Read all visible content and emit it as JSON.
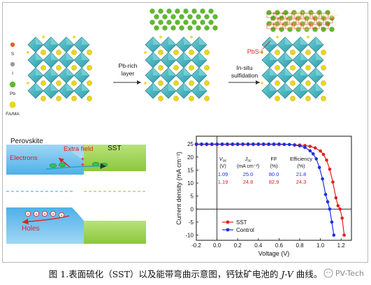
{
  "schematic": {
    "legend": [
      {
        "label": "S",
        "color": "#e0621e"
      },
      {
        "label": "I",
        "color": "#9a9a9a"
      },
      {
        "label": "Pb",
        "color": "#5dbb2a"
      },
      {
        "label": "FA/MA",
        "color": "#e8d81a"
      }
    ],
    "step1_label_line1": "Pb-rich",
    "step1_label_line2": "layer",
    "step2_label_line1": "In-situ",
    "step2_label_line2": "sulfidation",
    "pbs_label": "PbS-I"
  },
  "band_diagram": {
    "perovskite_label": "Perovskite",
    "sst_label": "SST",
    "extra_field_label": "Extra field",
    "electrons_label": "Electrons",
    "holes_label": "Holes"
  },
  "jv_table": {
    "headers": [
      {
        "line1": "V",
        "sub": "oc",
        "line2": "(V)"
      },
      {
        "line1": "J",
        "sub": "sc",
        "line2": "(mA cm⁻²)"
      },
      {
        "line1": "FF",
        "sub": "",
        "line2": "(%)"
      },
      {
        "line1": "Efficiency",
        "sub": "",
        "line2": "(%)"
      }
    ],
    "rows": [
      {
        "series": "Control",
        "color": "#1a2fe0",
        "values": [
          "1.09",
          "25.0",
          "80.0",
          "21.8"
        ]
      },
      {
        "series": "SST",
        "color": "#e0201a",
        "values": [
          "1.19",
          "24.8",
          "82.9",
          "24.3"
        ]
      }
    ]
  },
  "chart_data": {
    "type": "line",
    "xlabel": "Voltage (V)",
    "ylabel": "Current density (mA cm⁻²)",
    "xlim": [
      -0.2,
      1.3
    ],
    "ylim": [
      -12,
      28
    ],
    "xticks": [
      -0.2,
      0.0,
      0.2,
      0.4,
      0.6,
      0.8,
      1.0,
      1.2
    ],
    "yticks": [
      -10,
      -5,
      0,
      5,
      10,
      15,
      20,
      25
    ],
    "legend_position": "bottom-left",
    "series": [
      {
        "name": "SST",
        "color": "#e0201a",
        "marker": "circle",
        "x": [
          -0.2,
          -0.15,
          -0.1,
          -0.05,
          0.0,
          0.05,
          0.1,
          0.15,
          0.2,
          0.25,
          0.3,
          0.35,
          0.4,
          0.45,
          0.5,
          0.55,
          0.6,
          0.65,
          0.7,
          0.75,
          0.8,
          0.85,
          0.9,
          0.95,
          1.0,
          1.03,
          1.06,
          1.09,
          1.12,
          1.15,
          1.17,
          1.19,
          1.21,
          1.23
        ],
        "y": [
          24.8,
          24.8,
          24.8,
          24.8,
          24.8,
          24.8,
          24.8,
          24.8,
          24.8,
          24.8,
          24.8,
          24.8,
          24.8,
          24.8,
          24.8,
          24.8,
          24.8,
          24.8,
          24.8,
          24.7,
          24.6,
          24.4,
          24.1,
          23.5,
          22.3,
          21.0,
          18.8,
          15.3,
          10.4,
          4.3,
          1.3,
          0.0,
          -3.5,
          -10.0
        ]
      },
      {
        "name": "Control",
        "color": "#1a2fe0",
        "marker": "circle",
        "x": [
          -0.2,
          -0.15,
          -0.1,
          -0.05,
          0.0,
          0.05,
          0.1,
          0.15,
          0.2,
          0.25,
          0.3,
          0.35,
          0.4,
          0.45,
          0.5,
          0.55,
          0.6,
          0.65,
          0.7,
          0.75,
          0.8,
          0.85,
          0.9,
          0.93,
          0.96,
          0.99,
          1.02,
          1.05,
          1.07,
          1.09,
          1.11,
          1.13
        ],
        "y": [
          25.0,
          25.0,
          25.0,
          25.0,
          25.0,
          25.0,
          25.0,
          25.0,
          25.0,
          25.0,
          25.0,
          25.0,
          25.0,
          25.0,
          25.0,
          25.0,
          25.0,
          24.9,
          24.8,
          24.6,
          24.3,
          23.7,
          22.4,
          21.2,
          19.3,
          16.0,
          11.6,
          5.6,
          2.8,
          0.0,
          -5.0,
          -10.0
        ]
      }
    ]
  },
  "caption": {
    "main": "图 1.表面硫化（SST）以及能带弯曲示意图，钙钛矿电池的 ",
    "italic": "J-V",
    "tail": " 曲线。"
  },
  "watermark": "PV-Tech"
}
